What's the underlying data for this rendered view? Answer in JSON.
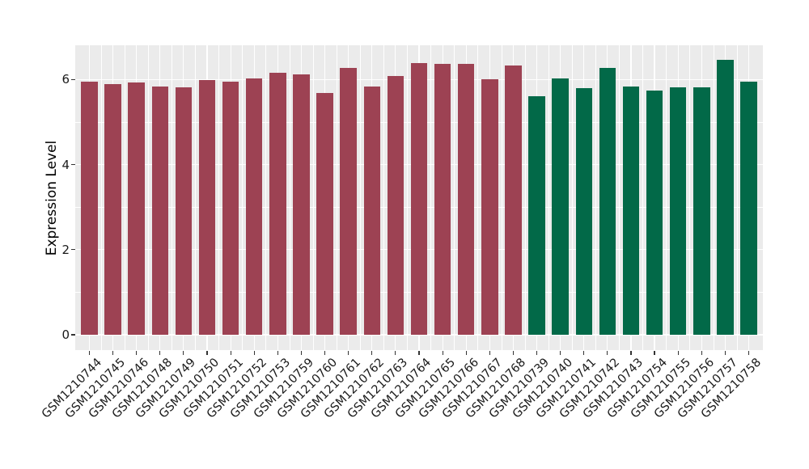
{
  "chart_data": {
    "type": "bar",
    "title": "",
    "xlabel": "",
    "ylabel": "Expression Level",
    "legend": "none",
    "grid": "major and minor, white on gray panel",
    "panel_bg": "#EBEBEB",
    "grid_color": "#FFFFFF",
    "tick_color": "#333333",
    "axis_text_color": "#1a1a1a",
    "yticks": [
      0,
      2,
      4,
      6
    ],
    "yminor": [
      1,
      3,
      5
    ],
    "ylim": [
      -0.36,
      6.84
    ],
    "bar_colors": {
      "group1": "#9D4253",
      "group2": "#026948"
    },
    "categories": [
      "GSM1210744",
      "GSM1210745",
      "GSM1210746",
      "GSM1210748",
      "GSM1210749",
      "GSM1210750",
      "GSM1210751",
      "GSM1210752",
      "GSM1210753",
      "GSM1210759",
      "GSM1210760",
      "GSM1210761",
      "GSM1210762",
      "GSM1210763",
      "GSM1210764",
      "GSM1210765",
      "GSM1210766",
      "GSM1210767",
      "GSM1210768",
      "GSM1210739",
      "GSM1210740",
      "GSM1210741",
      "GSM1210742",
      "GSM1210743",
      "GSM1210754",
      "GSM1210755",
      "GSM1210756",
      "GSM1210757",
      "GSM1210758"
    ],
    "values": [
      5.96,
      5.9,
      5.94,
      5.84,
      5.81,
      5.99,
      5.95,
      6.02,
      6.16,
      6.13,
      5.69,
      6.28,
      5.84,
      6.08,
      6.38,
      6.37,
      6.37,
      6.01,
      6.33,
      5.61,
      6.03,
      5.8,
      6.28,
      5.84,
      5.74,
      5.82,
      5.82,
      6.46,
      5.95
    ],
    "groups": [
      "group1",
      "group1",
      "group1",
      "group1",
      "group1",
      "group1",
      "group1",
      "group1",
      "group1",
      "group1",
      "group1",
      "group1",
      "group1",
      "group1",
      "group1",
      "group1",
      "group1",
      "group1",
      "group1",
      "group2",
      "group2",
      "group2",
      "group2",
      "group2",
      "group2",
      "group2",
      "group2",
      "group2",
      "group2"
    ]
  }
}
